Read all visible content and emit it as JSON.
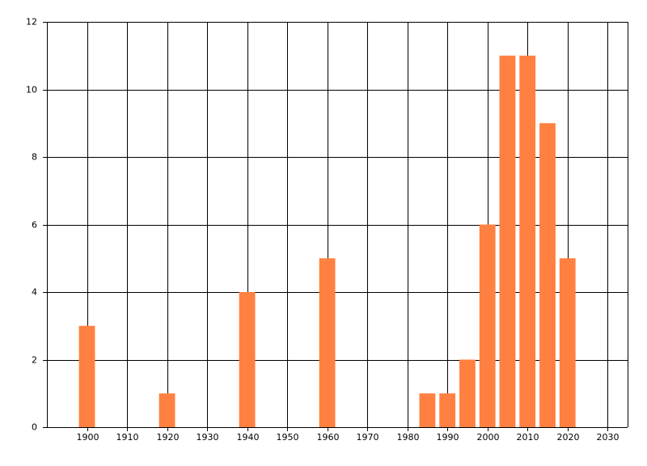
{
  "chart_data": {
    "type": "bar",
    "x": [
      1900,
      1920,
      1940,
      1960,
      1985,
      1990,
      1995,
      2000,
      2005,
      2010,
      2015,
      2020
    ],
    "values": [
      3,
      1,
      4,
      5,
      1,
      1,
      2,
      6,
      11,
      11,
      9,
      5
    ],
    "color": "#ff8040",
    "xlim": [
      1890,
      2035
    ],
    "xticks": [
      1900,
      1910,
      1920,
      1930,
      1940,
      1950,
      1960,
      1970,
      1980,
      1990,
      2000,
      2010,
      2020,
      2030
    ],
    "ylim": [
      0,
      12
    ],
    "yticks": [
      0,
      2,
      4,
      6,
      8,
      10,
      12
    ],
    "grid": true
  }
}
